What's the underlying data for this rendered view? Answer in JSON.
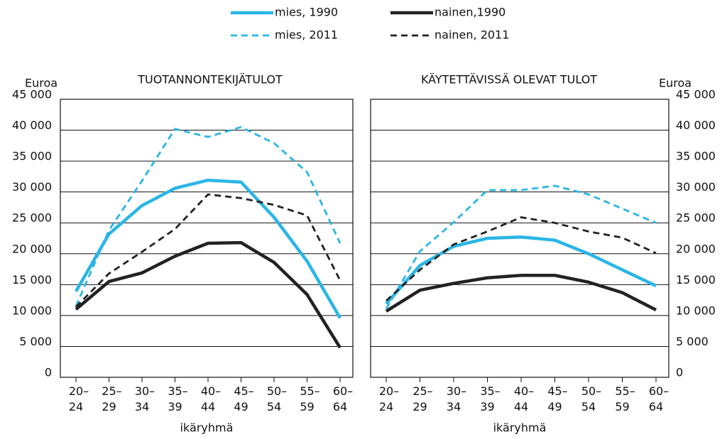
{
  "chart_data": [
    {
      "type": "line",
      "title": "TUOTANNONTEKIJÄTULOT",
      "y_label": "Euroa",
      "x_label": "ikäryhmä",
      "yaxis_side": "left",
      "grid": true,
      "categories": [
        "20–24",
        "25–29",
        "30–34",
        "35–39",
        "40–44",
        "45–49",
        "50–54",
        "55–59",
        "60–64"
      ],
      "ylim": [
        0,
        45000
      ],
      "yticks": [
        0,
        {
          "value": 5000,
          "label": "5 000"
        },
        {
          "value": 10000,
          "label": "10 000"
        },
        {
          "value": 15000,
          "label": "15 000"
        },
        {
          "value": 20000,
          "label": "20 000"
        },
        {
          "value": 25000,
          "label": "25 000"
        },
        {
          "value": 30000,
          "label": "30 000"
        },
        {
          "value": 35000,
          "label": "35 000"
        },
        {
          "value": 40000,
          "label": "40 000"
        },
        {
          "value": 45000,
          "label": "45 000"
        }
      ],
      "series": [
        {
          "name": "mies, 1990",
          "color": "#29b6e6",
          "dashed": false,
          "values": [
            13900,
            23200,
            27800,
            30600,
            31900,
            31600,
            25900,
            18800,
            9600
          ]
        },
        {
          "name": "nainen,1990",
          "color": "#222222",
          "dashed": false,
          "values": [
            11000,
            15500,
            16900,
            19600,
            21700,
            21800,
            18600,
            13400,
            4800
          ]
        },
        {
          "name": "mies, 2011",
          "color": "#29b6e6",
          "dashed": true,
          "values": [
            11500,
            23800,
            31800,
            40200,
            38900,
            40500,
            37900,
            33200,
            21700
          ]
        },
        {
          "name": "nainen, 2011",
          "color": "#222222",
          "dashed": true,
          "values": [
            11400,
            16800,
            20300,
            24000,
            29600,
            29000,
            27900,
            26200,
            15700
          ]
        }
      ]
    },
    {
      "type": "line",
      "title": "KÄYTETTÄVISSÄ OLEVAT TULOT",
      "y_label": "Euroa",
      "x_label": "ikäryhmä",
      "yaxis_side": "right",
      "grid": true,
      "categories": [
        "20–24",
        "25–29",
        "30–34",
        "35–39",
        "40–44",
        "45–49",
        "50–54",
        "55–59",
        "60–64"
      ],
      "ylim": [
        0,
        45000
      ],
      "yticks": [
        0,
        {
          "value": 5000,
          "label": "5 000"
        },
        {
          "value": 10000,
          "label": "10 000"
        },
        {
          "value": 15000,
          "label": "15 000"
        },
        {
          "value": 20000,
          "label": "20 000"
        },
        {
          "value": 25000,
          "label": "25 000"
        },
        {
          "value": 30000,
          "label": "30 000"
        },
        {
          "value": 35000,
          "label": "35 000"
        },
        {
          "value": 40000,
          "label": "40 000"
        },
        {
          "value": 45000,
          "label": "45 000"
        }
      ],
      "series": [
        {
          "color": "#29b6e6",
          "dashed": false,
          "values": [
            11900,
            18100,
            21200,
            22500,
            22700,
            22200,
            20000,
            17400,
            14800
          ]
        },
        {
          "color": "#222222",
          "dashed": false,
          "values": [
            10700,
            14100,
            15200,
            16100,
            16500,
            16500,
            15400,
            13700,
            10900
          ]
        },
        {
          "color": "#29b6e6",
          "dashed": true,
          "values": [
            11100,
            20400,
            25100,
            30300,
            30300,
            31000,
            29600,
            27300,
            25000
          ]
        },
        {
          "color": "#222222",
          "dashed": true,
          "values": [
            12400,
            17400,
            21500,
            23600,
            25900,
            25000,
            23600,
            22600,
            20100
          ]
        }
      ]
    }
  ]
}
